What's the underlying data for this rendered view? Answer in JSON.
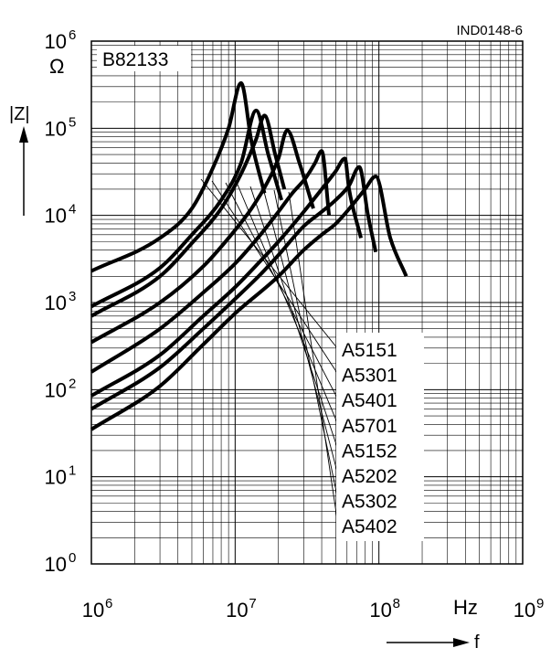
{
  "figure_id": "IND0148-6",
  "chart_data": {
    "type": "line",
    "title": "B82133",
    "ylabel": "|Z|",
    "yunit": "Ω",
    "xlabel": "f",
    "xunit": "Hz",
    "xscale": "log",
    "yscale": "log",
    "xlim": [
      1000000,
      1000000000
    ],
    "ylim": [
      1,
      1000000
    ],
    "x_ticks": [
      {
        "value": 1000000,
        "base": "10",
        "exp": "6"
      },
      {
        "value": 10000000,
        "base": "10",
        "exp": "7"
      },
      {
        "value": 100000000,
        "base": "10",
        "exp": "8"
      },
      {
        "value": 1000000000,
        "base": "10",
        "exp": "9"
      }
    ],
    "y_ticks": [
      {
        "value": 1,
        "base": "10",
        "exp": "0"
      },
      {
        "value": 10,
        "base": "10",
        "exp": "1"
      },
      {
        "value": 100,
        "base": "10",
        "exp": "2"
      },
      {
        "value": 1000,
        "base": "10",
        "exp": "3"
      },
      {
        "value": 10000,
        "base": "10",
        "exp": "4"
      },
      {
        "value": 100000,
        "base": "10",
        "exp": "5"
      },
      {
        "value": 1000000,
        "base": "10",
        "exp": "6"
      }
    ],
    "grid": true,
    "line_color": "#000000",
    "series": [
      {
        "name": "A5151",
        "x": [
          1000000,
          3000000,
          5000000,
          7000000,
          9000000,
          11000000,
          13000000,
          16000000
        ],
        "y": [
          2300,
          5500,
          12000,
          35000,
          100000,
          330000,
          70000,
          18000
        ]
      },
      {
        "name": "A5301",
        "x": [
          1000000,
          3000000,
          5000000,
          8000000,
          11000000,
          14000000,
          17000000,
          21000000
        ],
        "y": [
          900,
          2500,
          6000,
          15000,
          40000,
          160000,
          50000,
          15000
        ]
      },
      {
        "name": "A5401",
        "x": [
          1000000,
          3000000,
          5000000,
          8000000,
          11000000,
          14000000,
          16000000,
          19000000,
          22000000
        ],
        "y": [
          700,
          2000,
          4800,
          12000,
          30000,
          75000,
          140000,
          50000,
          20000
        ]
      },
      {
        "name": "A5701",
        "x": [
          1000000,
          3000000,
          6000000,
          9000000,
          13000000,
          17000000,
          20000000,
          23000000,
          28000000,
          35000000
        ],
        "y": [
          350,
          1000,
          2600,
          5500,
          12000,
          25000,
          45000,
          95000,
          40000,
          12000
        ]
      },
      {
        "name": "A5152",
        "x": [
          1000000,
          3000000,
          6000000,
          10000000,
          15000000,
          20000000,
          25000000,
          31000000,
          36000000,
          40000000,
          45000000
        ],
        "y": [
          160,
          500,
          1300,
          2800,
          6000,
          11000,
          18000,
          27000,
          40000,
          55000,
          10000
        ]
      },
      {
        "name": "A5202",
        "x": [
          1000000,
          3000000,
          6000000,
          10000000,
          15000000,
          20000000,
          30000000,
          40000000,
          50000000,
          58000000,
          62000000,
          75000000
        ],
        "y": [
          85,
          250,
          700,
          1500,
          3000,
          5000,
          11000,
          20000,
          32000,
          45000,
          20000,
          5500
        ]
      },
      {
        "name": "A5302",
        "x": [
          1000000,
          3000000,
          6000000,
          10000000,
          15000000,
          20000000,
          30000000,
          40000000,
          50000000,
          62000000,
          73000000,
          84000000,
          95000000
        ],
        "y": [
          60,
          180,
          500,
          1100,
          2100,
          3500,
          7500,
          11000,
          15000,
          22000,
          36000,
          10000,
          3800
        ]
      },
      {
        "name": "A5402",
        "x": [
          1000000,
          3000000,
          6000000,
          10000000,
          20000000,
          30000000,
          40000000,
          50000000,
          65000000,
          80000000,
          95000000,
          120000000,
          155000000
        ],
        "y": [
          35,
          110,
          330,
          750,
          2000,
          4000,
          6000,
          8000,
          13000,
          20000,
          28000,
          5500,
          2000
        ]
      }
    ]
  }
}
